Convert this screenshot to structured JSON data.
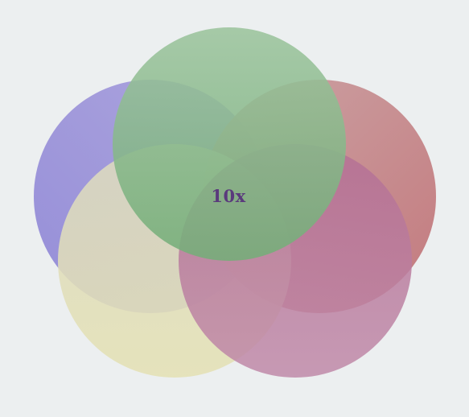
{
  "diagram": {
    "center_label": "10x",
    "label_color": "#5a3a7c",
    "background": "#eceff0",
    "circles": [
      {
        "id": "purple",
        "color_from": "#8e86d6",
        "color_to": "#a89fdc"
      },
      {
        "id": "rose",
        "color_from": "#c7989a",
        "color_to": "#c27478"
      },
      {
        "id": "yellow",
        "color_from": "#d9d8b8",
        "color_to": "#e4e1b6"
      },
      {
        "id": "pink",
        "color_from": "#b77096",
        "color_to": "#bf88a8"
      },
      {
        "id": "green",
        "color_from": "#98c29a",
        "color_to": "#78b07c"
      }
    ]
  }
}
